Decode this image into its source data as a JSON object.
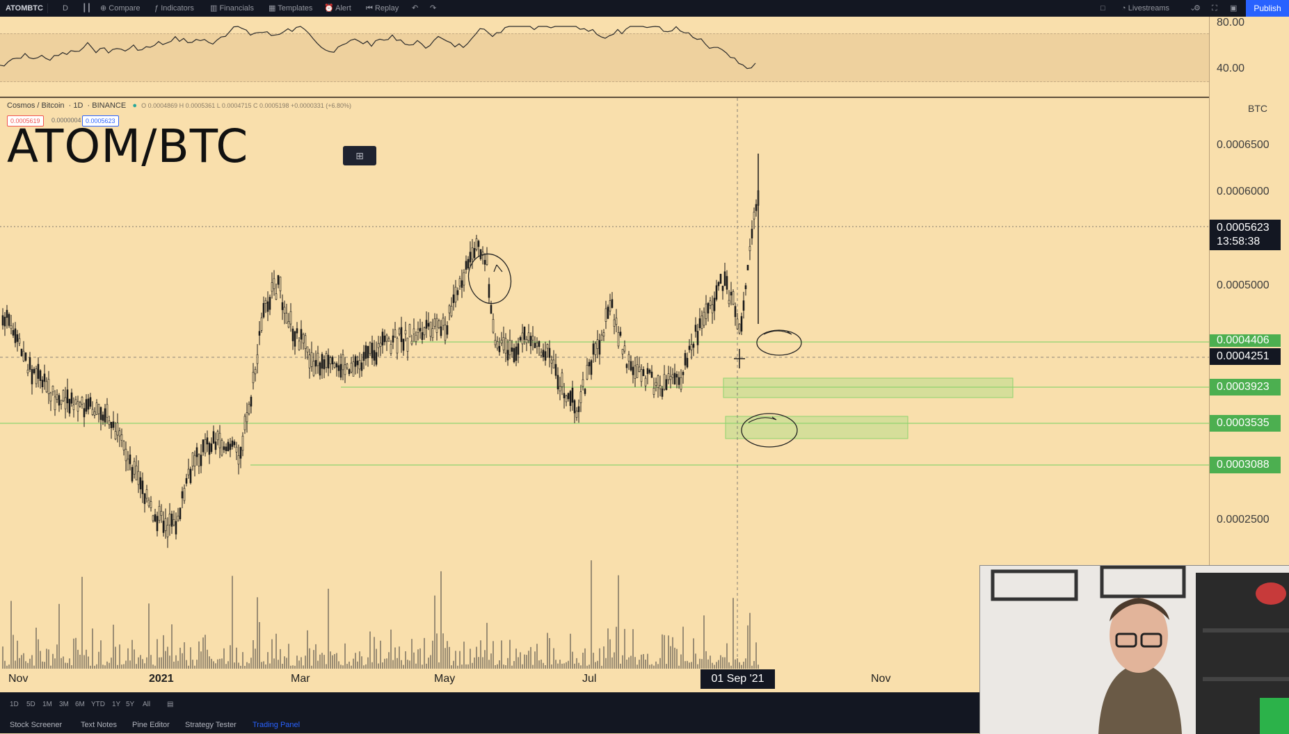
{
  "toolbar": {
    "symbol": "ATOMBTC",
    "interval": "D",
    "compare": "Compare",
    "indicators": "Indicators",
    "financials": "Financials",
    "templates": "Templates",
    "alert": "Alert",
    "replay": "Replay",
    "livestreams": "Livestreams",
    "publish": "Publish"
  },
  "rsi": {
    "label_80": "80.00",
    "label_40": "40.00"
  },
  "legend": {
    "name": "Cosmos / Bitcoin",
    "interval": "1D",
    "exchange": "BINANCE",
    "ohlc": "O 0.0004869  H 0.0005361  L 0.0004715  C 0.0005198  +0.0000331 (+6.80%)",
    "bid": "0.0005619",
    "spread": "0.0000004",
    "ask": "0.0005623"
  },
  "title": "ATOM/BTC",
  "price_axis": {
    "unit": "BTC",
    "labels": [
      "0.0006500",
      "0.0006000",
      "0.0005000",
      "0.0002500"
    ],
    "current_price": "0.0005623",
    "countdown": "13:58:38",
    "crosshair_price": "0.0004251",
    "level_top": "0.0004406",
    "level_1": "0.0003923",
    "level_2": "0.0003535",
    "level_3": "0.0003088"
  },
  "time_axis": {
    "labels": [
      "Nov",
      "2021",
      "Mar",
      "May",
      "Jul",
      "Nov"
    ],
    "crosshair_date": "01 Sep '21"
  },
  "intervals": [
    "1D",
    "5D",
    "1M",
    "3M",
    "6M",
    "YTD",
    "1Y",
    "5Y",
    "All"
  ],
  "bottom_tabs": [
    "Stock Screener",
    "Text Notes",
    "Pine Editor",
    "Strategy Tester",
    "Trading Panel"
  ],
  "colors": {
    "background": "#f9dfac",
    "candle": "#1a1a1a",
    "zone_fill": "#b9dc8d",
    "zone_line": "#8fd36f",
    "badge_green": "#4caf50",
    "badge_dark": "#131722"
  }
}
